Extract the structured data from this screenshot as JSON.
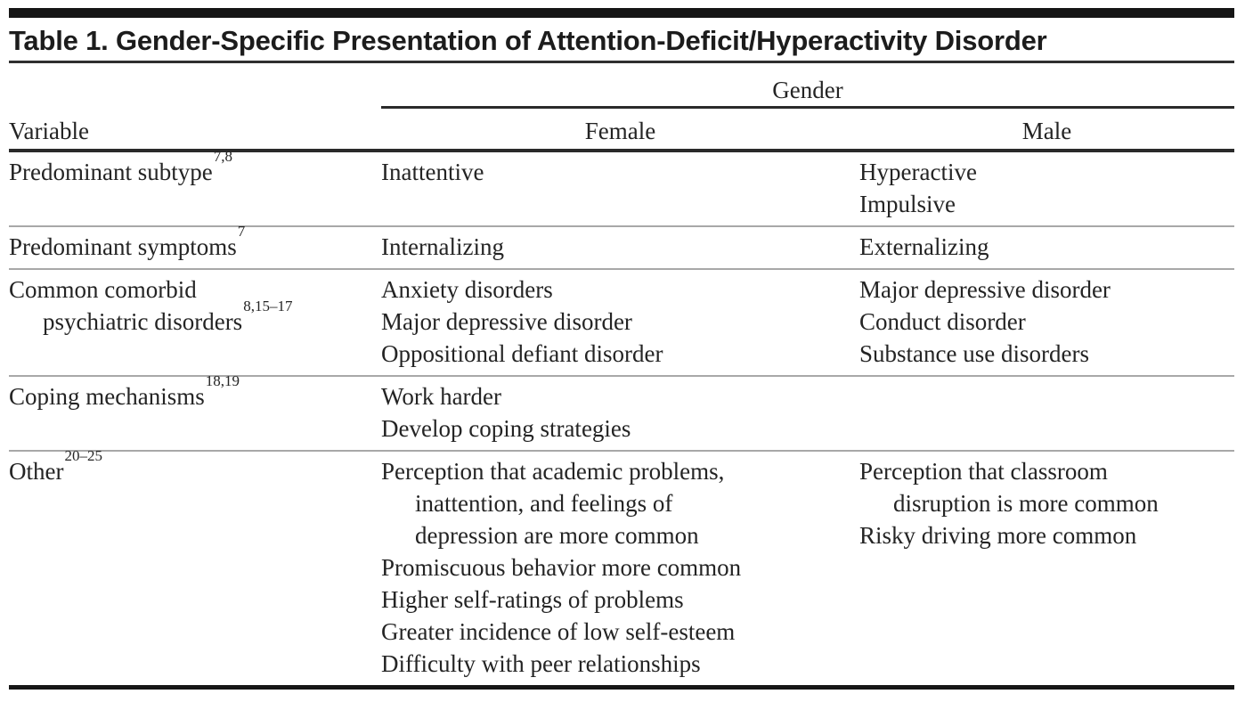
{
  "page": {
    "title": "Table 1. Gender-Specific Presentation of Attention-Deficit/Hyperactivity Disorder"
  },
  "table": {
    "group_header": "Gender",
    "columns": {
      "variable": "Variable",
      "female": "Female",
      "male": "Male"
    },
    "rows": [
      {
        "variable": [
          {
            "text": "Predominant subtype",
            "sup": "7,8"
          }
        ],
        "female": [
          {
            "text": "Inattentive"
          }
        ],
        "male": [
          {
            "text": "Hyperactive"
          },
          {
            "text": "Impulsive"
          }
        ]
      },
      {
        "variable": [
          {
            "text": "Predominant symptoms",
            "sup": "7"
          }
        ],
        "female": [
          {
            "text": "Internalizing"
          }
        ],
        "male": [
          {
            "text": "Externalizing"
          }
        ]
      },
      {
        "variable": [
          {
            "text": "Common comorbid"
          },
          {
            "text": "psychiatric disorders",
            "sup": "8,15–17",
            "indent": true
          }
        ],
        "female": [
          {
            "text": "Anxiety disorders"
          },
          {
            "text": "Major depressive disorder"
          },
          {
            "text": "Oppositional defiant disorder"
          }
        ],
        "male": [
          {
            "text": "Major depressive disorder"
          },
          {
            "text": "Conduct disorder"
          },
          {
            "text": "Substance use disorders"
          }
        ]
      },
      {
        "variable": [
          {
            "text": "Coping mechanisms",
            "sup": "18,19"
          }
        ],
        "female": [
          {
            "text": "Work harder"
          },
          {
            "text": "Develop coping strategies"
          }
        ],
        "male": []
      },
      {
        "variable": [
          {
            "text": "Other",
            "sup": "20–25"
          }
        ],
        "female": [
          {
            "text": "Perception that academic problems,"
          },
          {
            "text": "inattention, and feelings of",
            "indent": true
          },
          {
            "text": "depression are more common",
            "indent": true
          },
          {
            "text": "Promiscuous behavior more common"
          },
          {
            "text": "Higher self-ratings of problems"
          },
          {
            "text": "Greater incidence of low self-esteem"
          },
          {
            "text": "Difficulty with peer relationships"
          }
        ],
        "male": [
          {
            "text": "Perception that classroom"
          },
          {
            "text": "disruption is more common",
            "indent": true
          },
          {
            "text": "Risky driving more common"
          }
        ]
      }
    ]
  },
  "colors": {
    "text": "#242424",
    "rule_dark": "#2a2a2a",
    "rule_light": "#a8a8a8",
    "bar": "#161616",
    "bg": "#ffffff"
  }
}
